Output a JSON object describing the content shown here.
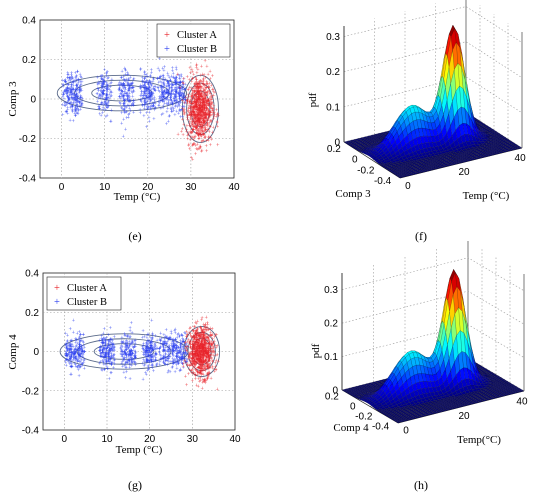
{
  "colors": {
    "cluster_a": "#e8232a",
    "cluster_b": "#2b3ff0",
    "ellipse": "#5a6a8a",
    "grid": "#9a9a9a"
  },
  "chart_data": [
    {
      "id": "e",
      "type": "scatter",
      "panel_label": "(e)",
      "xlabel": "Temp (°C)",
      "ylabel": "Comp 3",
      "xlim": [
        -5,
        40
      ],
      "ylim": [
        -0.4,
        0.4
      ],
      "xticks": [
        "0",
        "10",
        "20",
        "30",
        "40"
      ],
      "yticks": [
        "0.4",
        "0.2",
        "0",
        "-0.2",
        "-0.4"
      ],
      "grid": true,
      "legend_position": "top-right",
      "series": [
        {
          "name": "Cluster A",
          "marker": "+",
          "x_range": [
            27,
            36
          ],
          "y_center": -0.05,
          "y_spread": 0.2,
          "count": 900
        },
        {
          "name": "Cluster B",
          "marker": "+",
          "x_range": [
            0,
            29
          ],
          "y_center": 0.03,
          "y_spread": 0.12,
          "count": 1100
        }
      ]
    },
    {
      "id": "f",
      "type": "surface",
      "panel_label": "(f)",
      "xlabel": "Temp (°C)",
      "ylabel": "Comp 3",
      "zlabel": "pdf",
      "xticks": [
        "0",
        "20",
        "40"
      ],
      "yticks": [
        "0.2",
        "0",
        "-0.2",
        "-0.4"
      ],
      "zticks": [
        "0",
        "0.1",
        "0.2",
        "0.3"
      ],
      "zlim": [
        0,
        0.33
      ]
    },
    {
      "id": "g",
      "type": "scatter",
      "panel_label": "(g)",
      "xlabel": "Temp (°C)",
      "ylabel": "Comp 4",
      "xlim": [
        -5,
        40
      ],
      "ylim": [
        -0.4,
        0.4
      ],
      "xticks": [
        "0",
        "10",
        "20",
        "30",
        "40"
      ],
      "yticks": [
        "0.4",
        "0.2",
        "0",
        "-0.2",
        "-0.4"
      ],
      "grid": true,
      "legend_position": "top-left",
      "series": [
        {
          "name": "Cluster A",
          "marker": "+",
          "x_range": [
            27,
            36
          ],
          "y_center": 0.0,
          "y_spread": 0.15,
          "count": 900
        },
        {
          "name": "Cluster B",
          "marker": "+",
          "x_range": [
            0,
            29
          ],
          "y_center": 0.0,
          "y_spread": 0.1,
          "count": 1100
        }
      ]
    },
    {
      "id": "h",
      "type": "surface",
      "panel_label": "(h)",
      "xlabel": "Temp(°C)",
      "ylabel": "Comp 4",
      "zlabel": "pdf",
      "xticks": [
        "0",
        "20",
        "40"
      ],
      "yticks": [
        "0.2",
        "0",
        "-0.2",
        "-0.4"
      ],
      "zticks": [
        "0",
        "0.1",
        "0.2",
        "0.3"
      ],
      "zlim": [
        0,
        0.35
      ]
    }
  ]
}
